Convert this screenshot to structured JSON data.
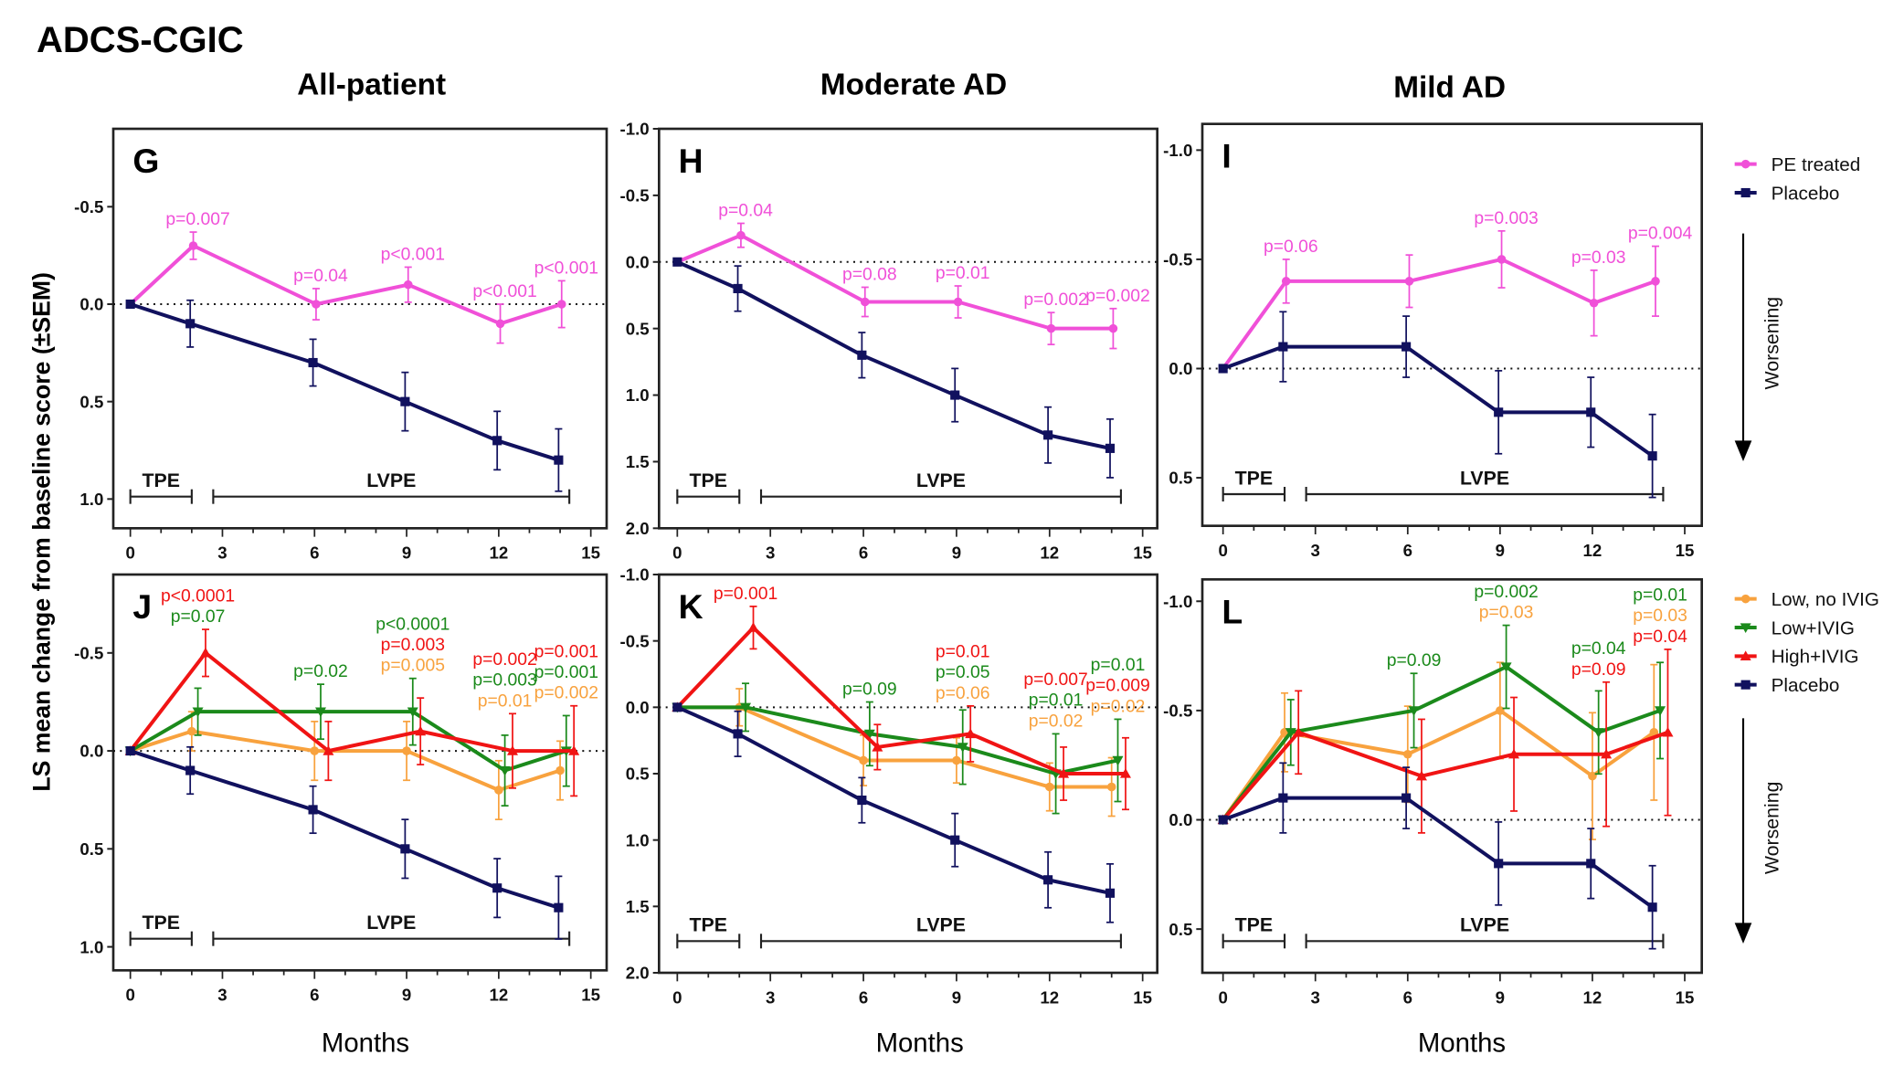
{
  "title": "ADCS-CGIC",
  "column_titles": [
    "All-patient",
    "Moderate AD",
    "Mild AD"
  ],
  "y_axis_label": "LS mean change from baseline score (±SEM)",
  "x_axis_label": "Months",
  "worsening_label": "Worsening",
  "colors": {
    "PE treated": "#f050d8",
    "Placebo": "#11115e",
    "Low, no IVIG": "#f8a23e",
    "Low+IVIG": "#1b8a1b",
    "High+IVIG": "#f01414"
  },
  "legend_top": [
    {
      "name": "PE treated",
      "marker": "circle"
    },
    {
      "name": "Placebo",
      "marker": "square"
    }
  ],
  "legend_bottom": [
    {
      "name": "Low, no IVIG",
      "marker": "circle"
    },
    {
      "name": "Low+IVIG",
      "marker": "triangle-down"
    },
    {
      "name": "High+IVIG",
      "marker": "triangle-up"
    },
    {
      "name": "Placebo",
      "marker": "square"
    }
  ],
  "chart_data": [
    {
      "panel": "G",
      "type": "line",
      "column": "All-patient",
      "xlim": [
        0,
        15
      ],
      "xticks": [
        0,
        3,
        6,
        9,
        12,
        15
      ],
      "ylim": [
        -0.9,
        1.15
      ],
      "y_reversed": true,
      "yticks": [
        -0.5,
        0.0,
        0.5,
        1.0
      ],
      "reference_line": 0,
      "grid": false,
      "periods": [
        {
          "label": "TPE",
          "start": 0,
          "end": 2
        },
        {
          "label": "LVPE",
          "start": 2.7,
          "end": 14.3
        }
      ],
      "series": [
        {
          "name": "PE treated",
          "marker": "circle",
          "x": [
            0,
            2,
            6,
            9,
            12,
            14
          ],
          "y": [
            0,
            -0.3,
            0,
            -0.1,
            0.1,
            0
          ],
          "sem": [
            0,
            0.07,
            0.08,
            0.09,
            0.1,
            0.12
          ]
        },
        {
          "name": "Placebo",
          "marker": "square",
          "x": [
            0,
            2,
            6,
            9,
            12,
            14
          ],
          "y": [
            0,
            0.1,
            0.3,
            0.5,
            0.7,
            0.8
          ],
          "sem": [
            0,
            0.12,
            0.12,
            0.15,
            0.15,
            0.16
          ]
        }
      ],
      "pvalues": [
        {
          "x": 2,
          "lines": [
            {
              "text": "p=0.007",
              "series": "PE treated"
            }
          ]
        },
        {
          "x": 6,
          "lines": [
            {
              "text": "p=0.04",
              "series": "PE treated"
            }
          ]
        },
        {
          "x": 9,
          "lines": [
            {
              "text": "p<0.001",
              "series": "PE treated"
            }
          ]
        },
        {
          "x": 12,
          "lines": [
            {
              "text": "p<0.001",
              "series": "PE treated"
            }
          ]
        },
        {
          "x": 14,
          "lines": [
            {
              "text": "p<0.001",
              "series": "PE treated"
            }
          ]
        }
      ]
    },
    {
      "panel": "H",
      "type": "line",
      "column": "Moderate AD",
      "xlim": [
        0,
        15
      ],
      "xticks": [
        0,
        3,
        6,
        9,
        12,
        15
      ],
      "ylim": [
        -1.0,
        2.0
      ],
      "y_reversed": true,
      "yticks": [
        -1.0,
        -0.5,
        0.0,
        0.5,
        1.0,
        1.5,
        2.0
      ],
      "reference_line": 0,
      "grid": false,
      "periods": [
        {
          "label": "TPE",
          "start": 0,
          "end": 2
        },
        {
          "label": "LVPE",
          "start": 2.7,
          "end": 14.3
        }
      ],
      "series": [
        {
          "name": "PE treated",
          "marker": "circle",
          "x": [
            0,
            2,
            6,
            9,
            12,
            14
          ],
          "y": [
            0,
            -0.2,
            0.3,
            0.3,
            0.5,
            0.5
          ],
          "sem": [
            0,
            0.09,
            0.11,
            0.12,
            0.12,
            0.15
          ]
        },
        {
          "name": "Placebo",
          "marker": "square",
          "x": [
            0,
            2,
            6,
            9,
            12,
            14
          ],
          "y": [
            0,
            0.2,
            0.7,
            1.0,
            1.3,
            1.4
          ],
          "sem": [
            0,
            0.17,
            0.17,
            0.2,
            0.21,
            0.22
          ]
        }
      ],
      "pvalues": [
        {
          "x": 2,
          "lines": [
            {
              "text": "p=0.04",
              "series": "PE treated"
            }
          ]
        },
        {
          "x": 6,
          "lines": [
            {
              "text": "p=0.08",
              "series": "PE treated"
            }
          ]
        },
        {
          "x": 9,
          "lines": [
            {
              "text": "p=0.01",
              "series": "PE treated"
            }
          ]
        },
        {
          "x": 12,
          "lines": [
            {
              "text": "p=0.002",
              "series": "PE treated"
            }
          ]
        },
        {
          "x": 14,
          "lines": [
            {
              "text": "p=0.002",
              "series": "PE treated"
            }
          ]
        }
      ]
    },
    {
      "panel": "I",
      "type": "line",
      "column": "Mild AD",
      "xlim": [
        0,
        15
      ],
      "xticks": [
        0,
        3,
        6,
        9,
        12,
        15
      ],
      "ylim": [
        -1.12,
        0.72
      ],
      "y_reversed": true,
      "yticks": [
        -1.0,
        -0.5,
        0.0,
        0.5
      ],
      "reference_line": 0,
      "grid": false,
      "periods": [
        {
          "label": "TPE",
          "start": 0,
          "end": 2
        },
        {
          "label": "LVPE",
          "start": 2.7,
          "end": 14.3
        }
      ],
      "series": [
        {
          "name": "PE treated",
          "marker": "circle",
          "x": [
            0,
            2,
            6,
            9,
            12,
            14
          ],
          "y": [
            0,
            -0.4,
            -0.4,
            -0.5,
            -0.3,
            -0.4
          ],
          "sem": [
            0,
            0.1,
            0.12,
            0.13,
            0.15,
            0.16
          ]
        },
        {
          "name": "Placebo",
          "marker": "square",
          "x": [
            0,
            2,
            6,
            9,
            12,
            14
          ],
          "y": [
            0,
            -0.1,
            -0.1,
            0.2,
            0.2,
            0.4
          ],
          "sem": [
            0,
            0.16,
            0.14,
            0.19,
            0.16,
            0.19
          ]
        }
      ],
      "pvalues": [
        {
          "x": 2,
          "lines": [
            {
              "text": "p=0.06",
              "series": "PE treated"
            }
          ]
        },
        {
          "x": 9,
          "lines": [
            {
              "text": "p=0.003",
              "series": "PE treated"
            }
          ]
        },
        {
          "x": 12,
          "lines": [
            {
              "text": "p=0.03",
              "series": "PE treated"
            }
          ]
        },
        {
          "x": 14,
          "lines": [
            {
              "text": "p=0.004",
              "series": "PE treated"
            }
          ]
        }
      ]
    },
    {
      "panel": "J",
      "type": "line",
      "column": "All-patient",
      "xlim": [
        0,
        15
      ],
      "xticks": [
        0,
        3,
        6,
        9,
        12,
        15
      ],
      "ylim": [
        -0.9,
        1.12
      ],
      "y_reversed": true,
      "yticks": [
        -0.5,
        0.0,
        0.5,
        1.0
      ],
      "reference_line": 0,
      "grid": false,
      "periods": [
        {
          "label": "TPE",
          "start": 0,
          "end": 2
        },
        {
          "label": "LVPE",
          "start": 2.7,
          "end": 14.3
        }
      ],
      "series": [
        {
          "name": "Low, no IVIG",
          "marker": "circle",
          "x": [
            0,
            2,
            6,
            9,
            12,
            14
          ],
          "y": [
            0,
            -0.1,
            0,
            0,
            0.2,
            0.1
          ],
          "sem": [
            0,
            0.1,
            0.15,
            0.15,
            0.15,
            0.15
          ]
        },
        {
          "name": "Low+IVIG",
          "marker": "triangle-down",
          "x": [
            0,
            2,
            6,
            9,
            12,
            14
          ],
          "y": [
            0,
            -0.2,
            -0.2,
            -0.2,
            0.1,
            0
          ],
          "sem": [
            0,
            0.12,
            0.14,
            0.17,
            0.18,
            0.18
          ]
        },
        {
          "name": "High+IVIG",
          "marker": "triangle-up",
          "x": [
            0,
            2,
            6,
            9,
            12,
            14
          ],
          "y": [
            0,
            -0.5,
            0,
            -0.1,
            0,
            0
          ],
          "sem": [
            0,
            0.12,
            0.15,
            0.17,
            0.19,
            0.23
          ]
        },
        {
          "name": "Placebo",
          "marker": "square",
          "x": [
            0,
            2,
            6,
            9,
            12,
            14
          ],
          "y": [
            0,
            0.1,
            0.3,
            0.5,
            0.7,
            0.8
          ],
          "sem": [
            0,
            0.12,
            0.12,
            0.15,
            0.15,
            0.16
          ]
        }
      ],
      "pvalues": [
        {
          "x": 2,
          "lines": [
            {
              "text": "p<0.0001",
              "series": "High+IVIG"
            },
            {
              "text": "p=0.07",
              "series": "Low+IVIG"
            }
          ]
        },
        {
          "x": 6,
          "lines": [
            {
              "text": "p=0.02",
              "series": "Low+IVIG"
            }
          ]
        },
        {
          "x": 9,
          "lines": [
            {
              "text": "p<0.0001",
              "series": "Low+IVIG"
            },
            {
              "text": "p=0.003",
              "series": "High+IVIG"
            },
            {
              "text": "p=0.005",
              "series": "Low, no IVIG"
            }
          ]
        },
        {
          "x": 12,
          "lines": [
            {
              "text": "p=0.002",
              "series": "High+IVIG"
            },
            {
              "text": "p=0.003",
              "series": "Low+IVIG"
            },
            {
              "text": "p=0.01",
              "series": "Low, no IVIG"
            }
          ]
        },
        {
          "x": 14,
          "lines": [
            {
              "text": "p=0.001",
              "series": "High+IVIG"
            },
            {
              "text": "p=0.001",
              "series": "Low+IVIG"
            },
            {
              "text": "p=0.002",
              "series": "Low, no IVIG"
            }
          ]
        }
      ]
    },
    {
      "panel": "K",
      "type": "line",
      "column": "Moderate AD",
      "xlim": [
        0,
        15
      ],
      "xticks": [
        0,
        3,
        6,
        9,
        12,
        15
      ],
      "ylim": [
        -1.0,
        2.0
      ],
      "y_reversed": true,
      "yticks": [
        -1.0,
        -0.5,
        0.0,
        0.5,
        1.0,
        1.5,
        2.0
      ],
      "reference_line": 0,
      "grid": false,
      "periods": [
        {
          "label": "TPE",
          "start": 0,
          "end": 2
        },
        {
          "label": "LVPE",
          "start": 2.7,
          "end": 14.3
        }
      ],
      "series": [
        {
          "name": "Low, no IVIG",
          "marker": "circle",
          "x": [
            0,
            2,
            6,
            9,
            12,
            14
          ],
          "y": [
            0,
            0,
            0.4,
            0.4,
            0.6,
            0.6
          ],
          "sem": [
            0,
            0.14,
            0.19,
            0.17,
            0.18,
            0.22
          ]
        },
        {
          "name": "Low+IVIG",
          "marker": "triangle-down",
          "x": [
            0,
            2,
            6,
            9,
            12,
            14
          ],
          "y": [
            0,
            0,
            0.2,
            0.3,
            0.5,
            0.4
          ],
          "sem": [
            0,
            0.18,
            0.24,
            0.28,
            0.3,
            0.31
          ]
        },
        {
          "name": "High+IVIG",
          "marker": "triangle-up",
          "x": [
            0,
            2,
            6,
            9,
            12,
            14
          ],
          "y": [
            0,
            -0.6,
            0.3,
            0.2,
            0.5,
            0.5
          ],
          "sem": [
            0,
            0.16,
            0.17,
            0.21,
            0.2,
            0.27
          ]
        },
        {
          "name": "Placebo",
          "marker": "square",
          "x": [
            0,
            2,
            6,
            9,
            12,
            14
          ],
          "y": [
            0,
            0.2,
            0.7,
            1.0,
            1.3,
            1.4
          ],
          "sem": [
            0,
            0.17,
            0.17,
            0.2,
            0.21,
            0.22
          ]
        }
      ],
      "pvalues": [
        {
          "x": 2,
          "lines": [
            {
              "text": "p=0.001",
              "series": "High+IVIG"
            }
          ]
        },
        {
          "x": 6,
          "lines": [
            {
              "text": "p=0.09",
              "series": "Low+IVIG"
            }
          ]
        },
        {
          "x": 9,
          "lines": [
            {
              "text": "p=0.01",
              "series": "High+IVIG"
            },
            {
              "text": "p=0.05",
              "series": "Low+IVIG"
            },
            {
              "text": "p=0.06",
              "series": "Low, no IVIG"
            }
          ]
        },
        {
          "x": 12,
          "lines": [
            {
              "text": "p=0.007",
              "series": "High+IVIG"
            },
            {
              "text": "p=0.01",
              "series": "Low+IVIG"
            },
            {
              "text": "p=0.02",
              "series": "Low, no IVIG"
            }
          ]
        },
        {
          "x": 14,
          "lines": [
            {
              "text": "p=0.01",
              "series": "Low+IVIG"
            },
            {
              "text": "p=0.009",
              "series": "High+IVIG"
            },
            {
              "text": "p=0.02",
              "series": "Low, no IVIG"
            }
          ]
        }
      ]
    },
    {
      "panel": "L",
      "type": "line",
      "column": "Mild AD",
      "xlim": [
        0,
        15
      ],
      "xticks": [
        0,
        3,
        6,
        9,
        12,
        15
      ],
      "ylim": [
        -1.1,
        0.7
      ],
      "y_reversed": true,
      "yticks": [
        -1.0,
        -0.5,
        0.0,
        0.5
      ],
      "reference_line": 0,
      "grid": false,
      "periods": [
        {
          "label": "TPE",
          "start": 0,
          "end": 2
        },
        {
          "label": "LVPE",
          "start": 2.7,
          "end": 14.3
        }
      ],
      "series": [
        {
          "name": "Low, no IVIG",
          "marker": "circle",
          "x": [
            0,
            2,
            6,
            9,
            12,
            14
          ],
          "y": [
            0,
            -0.4,
            -0.3,
            -0.5,
            -0.2,
            -0.4
          ],
          "sem": [
            0,
            0.18,
            0.22,
            0.22,
            0.29,
            0.31
          ]
        },
        {
          "name": "Low+IVIG",
          "marker": "triangle-down",
          "x": [
            0,
            2,
            6,
            9,
            12,
            14
          ],
          "y": [
            0,
            -0.4,
            -0.5,
            -0.7,
            -0.4,
            -0.5
          ],
          "sem": [
            0,
            0.15,
            0.17,
            0.19,
            0.19,
            0.22
          ]
        },
        {
          "name": "High+IVIG",
          "marker": "triangle-up",
          "x": [
            0,
            2,
            6,
            9,
            12,
            14
          ],
          "y": [
            0,
            -0.4,
            -0.2,
            -0.3,
            -0.3,
            -0.4
          ],
          "sem": [
            0,
            0.19,
            0.26,
            0.26,
            0.33,
            0.38
          ]
        },
        {
          "name": "Placebo",
          "marker": "square",
          "x": [
            0,
            2,
            6,
            9,
            12,
            14
          ],
          "y": [
            0,
            -0.1,
            -0.1,
            0.2,
            0.2,
            0.4
          ],
          "sem": [
            0,
            0.16,
            0.14,
            0.19,
            0.16,
            0.19
          ]
        }
      ],
      "pvalues": [
        {
          "x": 6,
          "lines": [
            {
              "text": "p=0.09",
              "series": "Low+IVIG"
            }
          ]
        },
        {
          "x": 9,
          "lines": [
            {
              "text": "p=0.002",
              "series": "Low+IVIG"
            },
            {
              "text": "p=0.03",
              "series": "Low, no IVIG"
            }
          ]
        },
        {
          "x": 12,
          "lines": [
            {
              "text": "p=0.04",
              "series": "Low+IVIG"
            },
            {
              "text": "p=0.09",
              "series": "High+IVIG"
            }
          ]
        },
        {
          "x": 14,
          "lines": [
            {
              "text": "p=0.01",
              "series": "Low+IVIG"
            },
            {
              "text": "p=0.03",
              "series": "Low, no IVIG"
            },
            {
              "text": "p=0.04",
              "series": "High+IVIG"
            }
          ]
        }
      ]
    }
  ]
}
